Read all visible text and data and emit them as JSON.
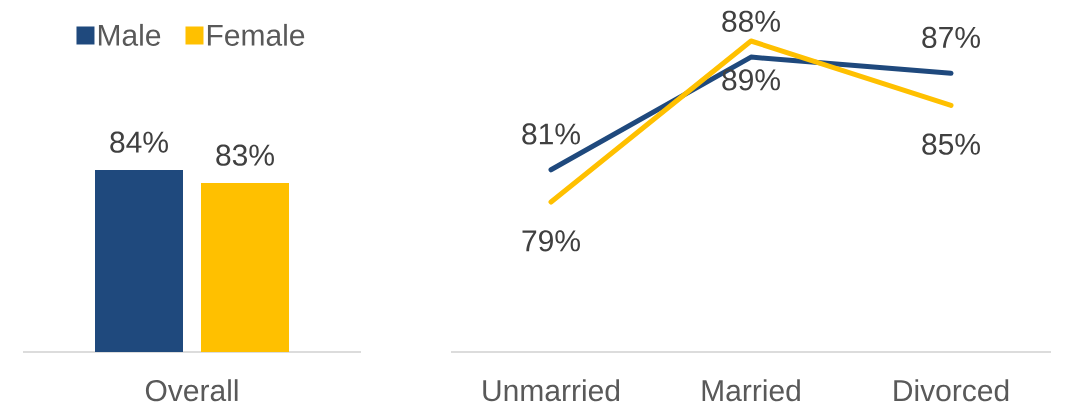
{
  "chart_data": [
    {
      "type": "bar",
      "categories": [
        "Overall"
      ],
      "series": [
        {
          "name": "Male",
          "color": "#1f497d",
          "values": [
            84
          ],
          "value_labels": [
            "84%"
          ]
        },
        {
          "name": "Female",
          "color": "#ffc000",
          "values": [
            83
          ],
          "value_labels": [
            "83%"
          ]
        }
      ],
      "ylim": [
        70,
        84
      ],
      "legend": "top",
      "tick_labels": "x"
    },
    {
      "type": "line",
      "categories": [
        "Unmarried",
        "Married",
        "Divorced"
      ],
      "series": [
        {
          "color": "#1f497d",
          "values": [
            81,
            88,
            87
          ],
          "value_labels": [
            "81%",
            "88%",
            "87%"
          ]
        },
        {
          "color": "#ffc000",
          "values": [
            79,
            89,
            85
          ],
          "value_labels": [
            "79%",
            "89%",
            "85%"
          ]
        }
      ],
      "tick_labels": "x",
      "marker": "none",
      "line_style": "solid"
    }
  ]
}
